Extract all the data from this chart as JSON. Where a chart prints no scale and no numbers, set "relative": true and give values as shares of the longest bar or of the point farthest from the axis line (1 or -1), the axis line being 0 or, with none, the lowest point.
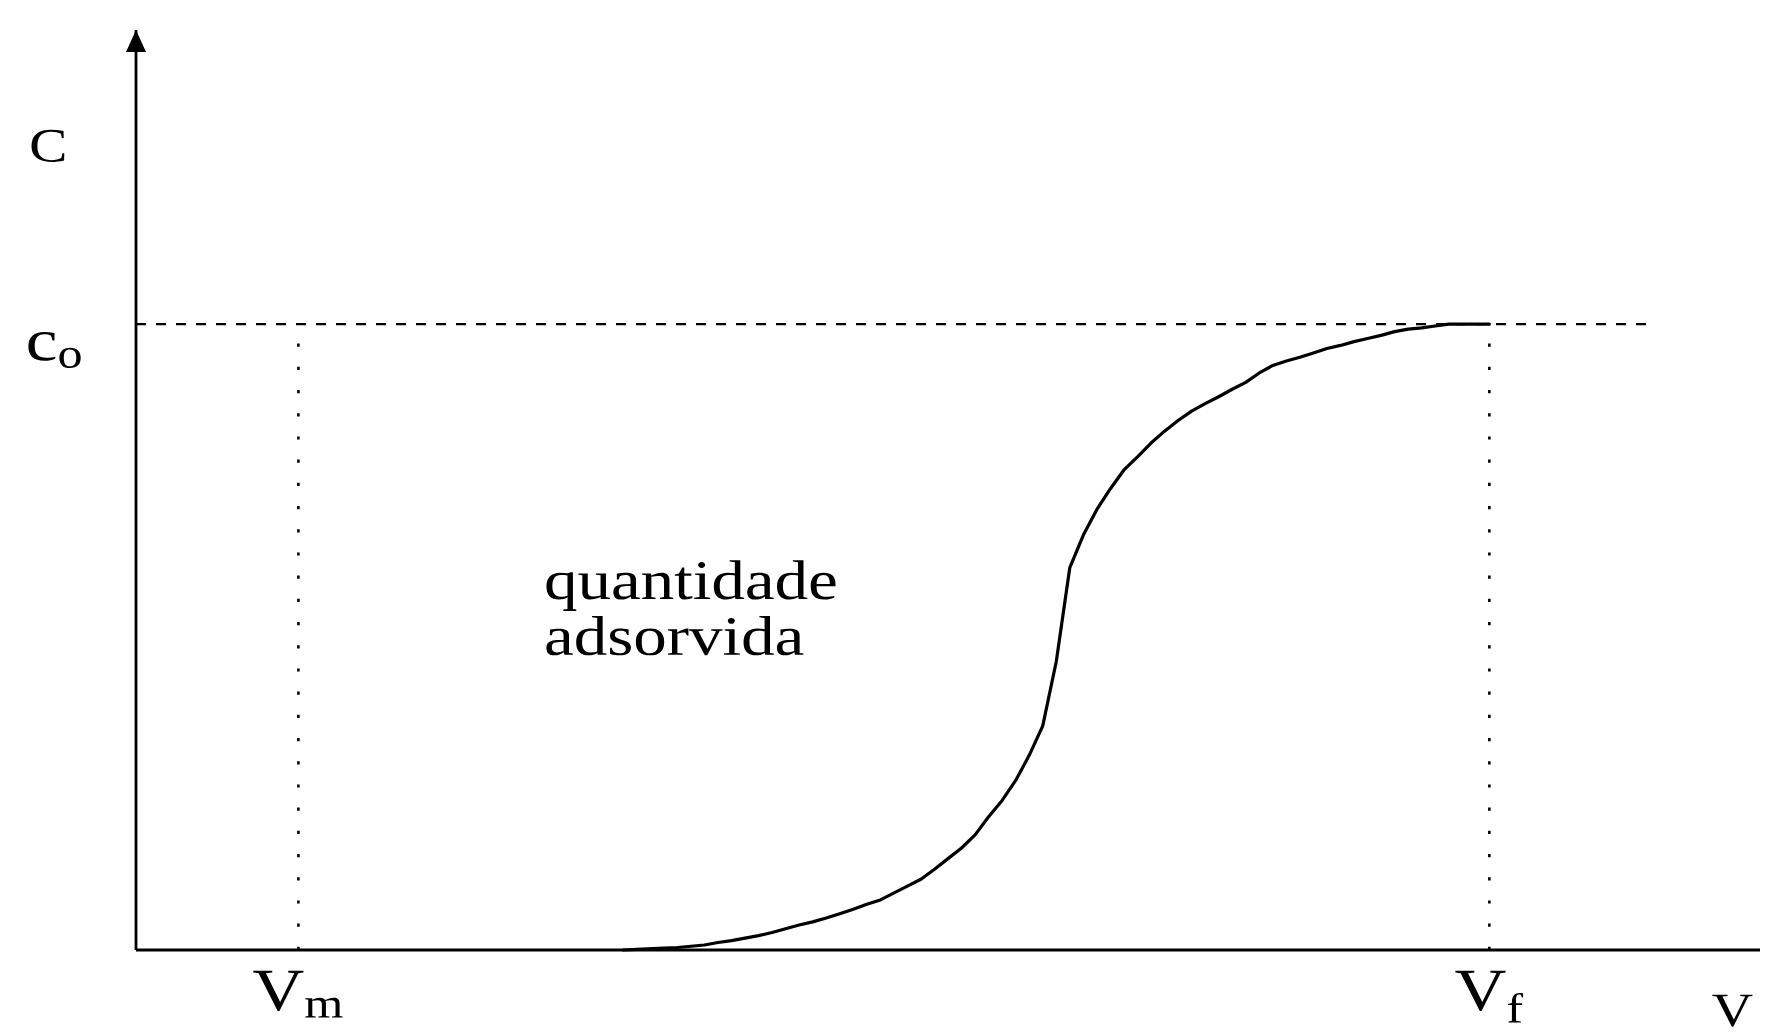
{
  "chart_data": {
    "type": "line",
    "relative": true,
    "xlabel": "V",
    "ylabel": "C",
    "categories": [
      null,
      null,
      null,
      null,
      null,
      null,
      null,
      null,
      null,
      null,
      null,
      null,
      "V$_{m}$",
      null,
      null,
      null,
      null,
      null,
      null,
      null,
      null,
      null,
      null,
      null,
      null,
      null,
      null,
      null,
      null,
      null,
      null,
      null,
      null,
      null,
      null,
      null,
      null,
      null,
      null,
      null,
      null,
      null,
      null,
      null,
      null,
      null,
      null,
      null,
      null,
      null,
      null,
      null,
      null,
      null,
      null,
      null,
      null,
      null,
      null,
      null,
      null,
      null,
      null,
      null,
      null,
      null,
      null,
      null,
      null,
      null,
      null,
      null,
      null,
      null,
      null,
      null,
      null,
      null,
      null,
      null,
      null,
      null,
      null,
      null,
      null,
      null,
      null,
      null,
      null,
      null,
      null,
      null,
      null,
      null,
      null,
      null,
      null,
      null,
      null,
      null,
      "V$_{f}$",
      null,
      null,
      null,
      null,
      null,
      null,
      null,
      null,
      null,
      null,
      null,
      null,
      null,
      null,
      null,
      null,
      null,
      null,
      null,
      null
    ],
    "values": [
      null,
      null,
      null,
      null,
      null,
      null,
      null,
      null,
      null,
      null,
      null,
      null,
      null,
      null,
      null,
      null,
      null,
      null,
      null,
      null,
      null,
      null,
      null,
      null,
      null,
      null,
      null,
      null,
      null,
      null,
      null,
      null,
      null,
      null,
      null,
      null,
      0,
      0.001,
      0.002,
      0.003,
      0.004,
      0.006,
      0.008,
      0.012,
      0.015,
      0.019,
      0.023,
      0.028,
      0.034,
      0.04,
      0.045,
      0.051,
      0.058,
      0.065,
      0.073,
      0.08,
      0.091,
      0.102,
      0.113,
      0.129,
      0.146,
      0.163,
      0.184,
      0.213,
      0.239,
      0.271,
      0.311,
      0.358,
      0.461,
      0.611,
      0.663,
      0.704,
      0.737,
      0.767,
      0.788,
      0.81,
      0.829,
      0.846,
      0.861,
      0.873,
      0.884,
      0.896,
      0.907,
      0.922,
      0.934,
      0.941,
      0.947,
      0.954,
      0.961,
      0.966,
      0.972,
      0.977,
      0.982,
      0.988,
      0.992,
      0.994,
      0.997,
      1,
      1,
      1,
      1,
      null,
      null,
      null,
      null,
      null,
      null,
      null,
      null,
      null,
      null,
      null,
      null,
      null,
      null,
      null,
      null,
      null,
      null,
      null,
      null
    ],
    "color": "#000000",
    "marker": "none",
    "line_style": "solid",
    "ref_lines": [
      {
        "axis": "y",
        "value": 1,
        "label": "c$_{o}$",
        "line_style": "dashed"
      },
      {
        "axis": "x",
        "value": "V$_{m}$",
        "line_style": "dotted"
      },
      {
        "axis": "x",
        "value": "V$_{f}$",
        "line_style": "dotted"
      }
    ],
    "annotations": [
      "quantidade adsorvida"
    ]
  }
}
